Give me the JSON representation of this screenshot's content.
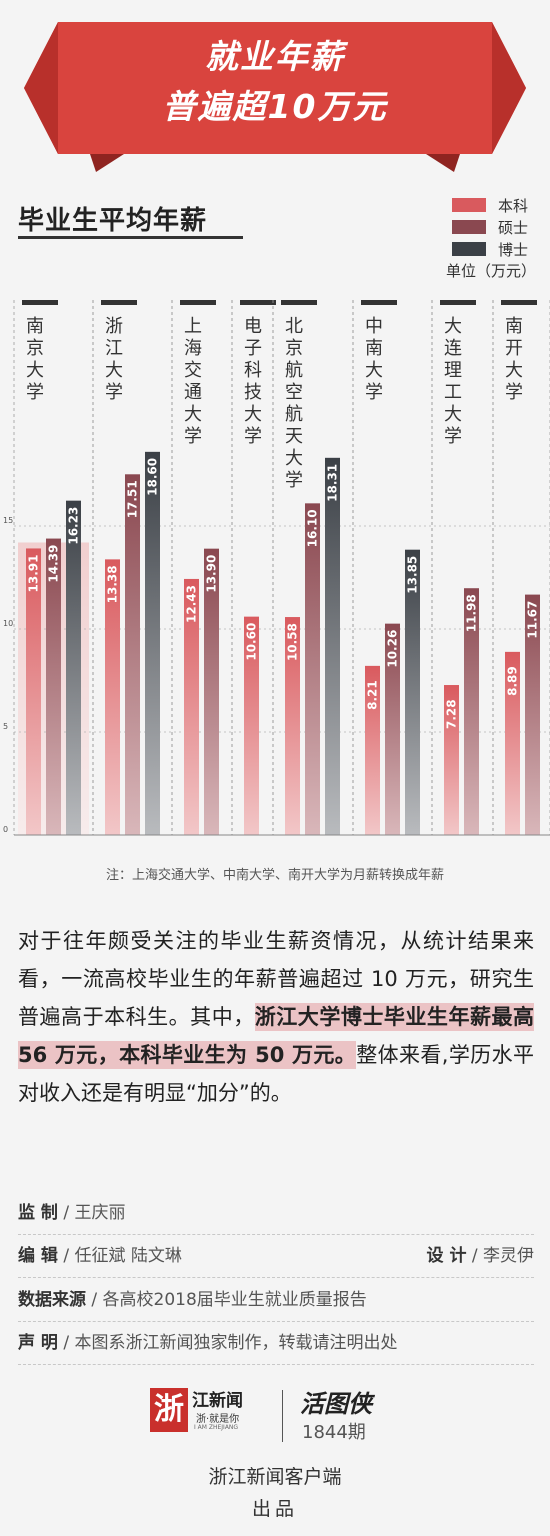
{
  "banner": {
    "line1": "就业年薪",
    "line2": "普遍超10万元"
  },
  "chart_data": {
    "type": "bar",
    "title": "毕业生平均年薪",
    "unit": "单位（万元）",
    "categories": [
      "南京大学",
      "浙江大学",
      "上海交通大学",
      "电子科技大学",
      "北京航空航天大学",
      "中南大学",
      "大连理工大学",
      "南开大学"
    ],
    "series": [
      {
        "name": "本科",
        "color": "#d95a5e",
        "values": [
          13.91,
          13.38,
          12.43,
          10.6,
          10.58,
          8.21,
          7.28,
          8.89
        ]
      },
      {
        "name": "硕士",
        "color": "#8a4850",
        "values": [
          14.39,
          17.51,
          13.9,
          null,
          16.1,
          10.26,
          11.98,
          11.67
        ]
      },
      {
        "name": "博士",
        "color": "#3b4046",
        "values": [
          16.23,
          18.6,
          null,
          null,
          18.31,
          13.85,
          null,
          null
        ]
      }
    ],
    "value_labels": {
      "本科": [
        "13.91",
        "13.38",
        "12.43",
        "10.60",
        "10.58",
        "8.21",
        "7.28",
        "8.89"
      ],
      "硕士": [
        "14.39",
        "17.51",
        "13.90",
        "",
        "16.10",
        "10.26",
        "11.98",
        "11.67"
      ],
      "博士": [
        "16.23",
        "18.60",
        "",
        "",
        "18.31",
        "13.85",
        "",
        ""
      ]
    },
    "y_ticks": [
      "0",
      "5",
      "10",
      "15"
    ],
    "ylim": [
      0,
      20
    ],
    "grid": true,
    "legend_position": "top-right",
    "highlight_category": "南京大学",
    "note": "注：上海交通大学、中南大学、南开大学为月薪转换成年薪"
  },
  "paragraph": {
    "part1": "对于往年颇受关注的毕业生薪资情况，从统计结果来看，一流高校毕业生的年薪普遍超过 10 万元，研究生普遍高于本科生。其中，",
    "highlight": "浙江大学博士毕业生年薪最高 56 万元，本科毕业生为 50 万元。",
    "part2": "整体来看,学历水平对收入还是有明显“加分”的。"
  },
  "credits": {
    "supervisor": {
      "key": "监  制",
      "value": "王庆丽"
    },
    "editor": {
      "key": "编  辑",
      "value": "任征斌    陆文琳"
    },
    "designer": {
      "key": "设  计",
      "value": "李灵伊"
    },
    "source": {
      "key": "数据来源",
      "value": "各高校2018届毕业生就业质量报告"
    },
    "statement": {
      "key": "声  明",
      "value": "本图系浙江新闻独家制作，转载请注明出处"
    }
  },
  "footer": {
    "logo_char": "浙",
    "logo_text": "江新闻",
    "logo_sub": "浙·就是你",
    "logo_en": "I AM ZHEJIANG",
    "brand": "活图侠",
    "issue": "1844期",
    "app": "浙江新闻客户端",
    "produce": "出品"
  },
  "colors": {
    "accent": "#d9443e",
    "bachelor": "#d95a5e",
    "master": "#8a4850",
    "doctor": "#3b4046"
  }
}
